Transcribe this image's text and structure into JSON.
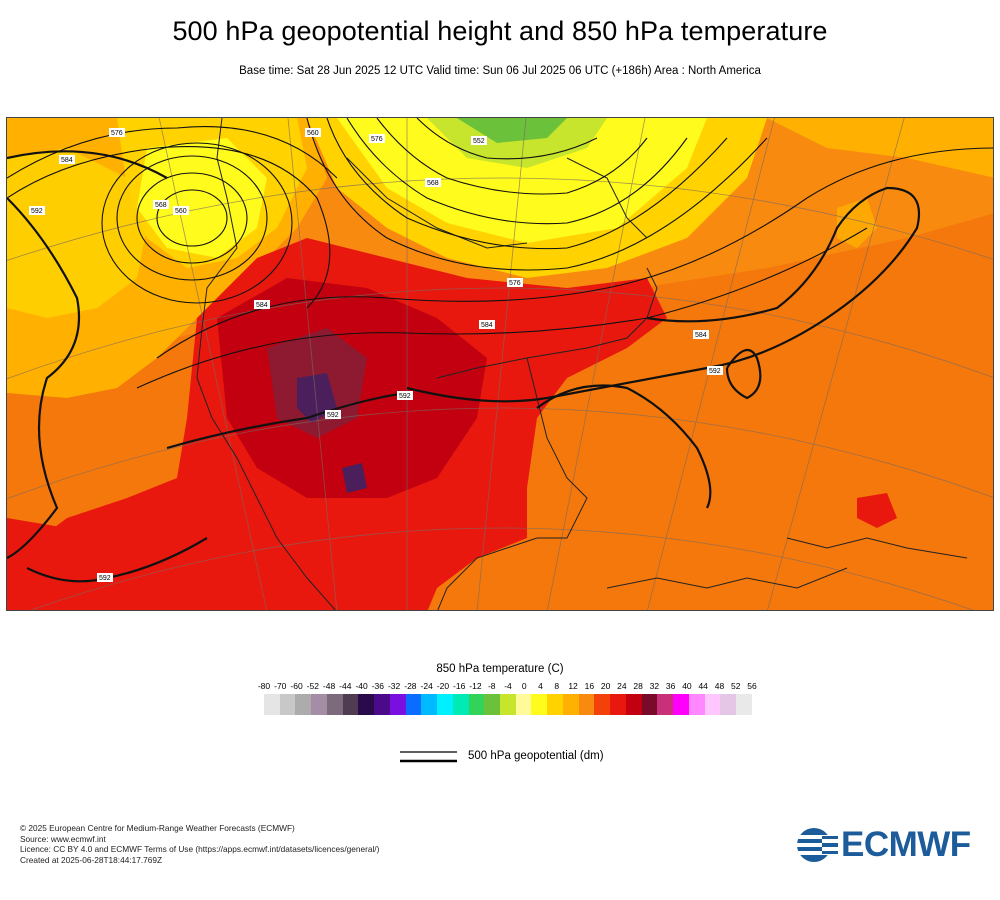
{
  "title": "500 hPa geopotential height and 850 hPa temperature",
  "subtitle": "Base time: Sat 28 Jun 2025 12 UTC Valid time: Sun 06 Jul 2025 06 UTC (+186h) Area : North America",
  "colors": {
    "orange": "#f98a10",
    "dark_orange": "#f16a0a",
    "red": "#e9180f",
    "dark_red": "#c3000f",
    "maroon": "#8e1a32",
    "purple": "#4b1f5c",
    "gold": "#ffb000",
    "amber": "#ffd200",
    "yellow": "#fffb1c",
    "lime": "#c6e52c",
    "green": "#6bc13a",
    "contour": "#111111"
  },
  "map": {
    "contour_labels": [
      "576",
      "584",
      "592",
      "568",
      "560",
      "560",
      "576",
      "584",
      "584",
      "592",
      "592",
      "592",
      "584",
      "576",
      "592",
      "552",
      "568"
    ]
  },
  "legend": {
    "title": "850 hPa temperature (C)",
    "ticks": [
      "-80",
      "-70",
      "-60",
      "-52",
      "-48",
      "-44",
      "-40",
      "-36",
      "-32",
      "-28",
      "-24",
      "-20",
      "-16",
      "-12",
      "-8",
      "-4",
      "0",
      "4",
      "8",
      "12",
      "16",
      "20",
      "24",
      "28",
      "32",
      "36",
      "40",
      "44",
      "48",
      "52",
      "56"
    ],
    "colors": [
      "#e5e5e5",
      "#c8c8c8",
      "#acacac",
      "#a58ea5",
      "#7b6b7b",
      "#4f3b52",
      "#2a0a4a",
      "#4a0a8a",
      "#7a10e0",
      "#0a6dff",
      "#00b9ff",
      "#00f0ff",
      "#00eab5",
      "#33d25b",
      "#6bc13a",
      "#c6e52c",
      "#fffb9a",
      "#fffb1c",
      "#ffd200",
      "#ffb000",
      "#f98a10",
      "#f3410a",
      "#e9180f",
      "#c3000f",
      "#7a0a2a",
      "#c8307a",
      "#ff00ff",
      "#ff88ff",
      "#ffc6ff",
      "#e6c6e6",
      "#e9e9e9"
    ],
    "geopotential_label": "500 hPa geopotential (dm)"
  },
  "footer": {
    "copyright": "© 2025 European Centre for Medium-Range Weather Forecasts (ECMWF)",
    "source": "Source: www.ecmwf.int",
    "licence": "Licence: CC BY 4.0 and ECMWF Terms of Use (https://apps.ecmwf.int/datasets/licences/general/)",
    "created": "Created at 2025-06-28T18:44:17.769Z"
  },
  "logo": {
    "text": "ECMWF",
    "color": "#1c5c9a",
    "icon": "ecmwf-logo-icon"
  }
}
